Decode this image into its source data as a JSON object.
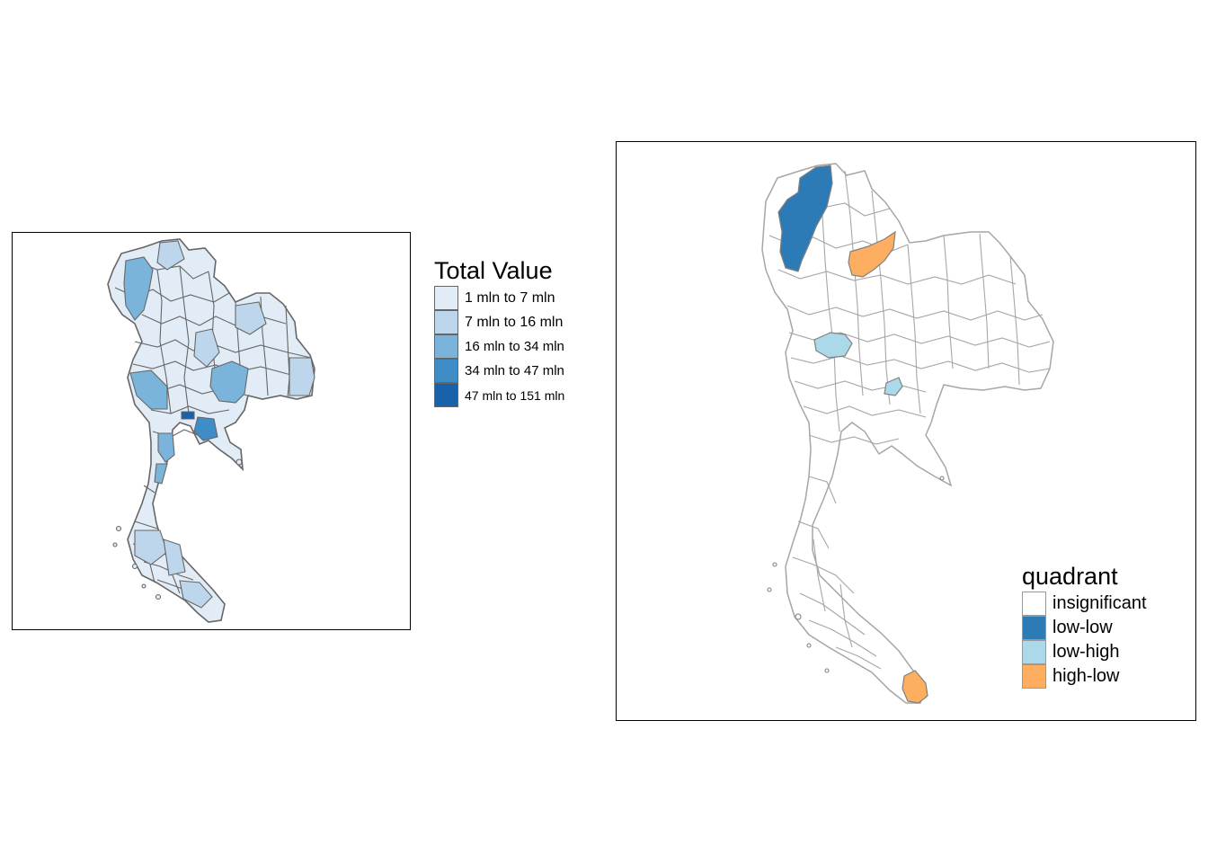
{
  "left_map": {
    "legend": {
      "title": "Total Value",
      "items": [
        {
          "label": "1 mln to 7 mln",
          "color": "#e2ecf7",
          "label_size": 16
        },
        {
          "label": "7 mln to 16 mln",
          "color": "#bed6ec",
          "label_size": 16
        },
        {
          "label": "16 mln to 34 mln",
          "color": "#7bb4da",
          "label_size": 15
        },
        {
          "label": "34 mln to 47 mln",
          "color": "#3f8dc6",
          "label_size": 15
        },
        {
          "label": "47 mln to 151 mln",
          "color": "#1862a9",
          "label_size": 14
        }
      ]
    },
    "border_color": "#666666"
  },
  "right_map": {
    "legend": {
      "title": "quadrant",
      "items": [
        {
          "label": "insignificant",
          "color": "#ffffff",
          "label_size": 20
        },
        {
          "label": "low-low",
          "color": "#2c7bb6",
          "label_size": 20
        },
        {
          "label": "low-high",
          "color": "#abd9e9",
          "label_size": 20
        },
        {
          "label": "high-low",
          "color": "#fdae61",
          "label_size": 20
        }
      ]
    },
    "border_color": "#a6a6a6"
  }
}
